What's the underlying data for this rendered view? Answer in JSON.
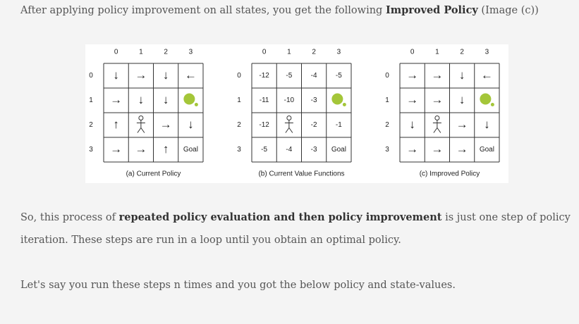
{
  "intro": {
    "text": "After applying policy improvement on all states, you get the following ",
    "bold": "Improved Policy",
    "tail": " (Image (c))"
  },
  "figure": {
    "panels": [
      {
        "caption": "(a) Current Policy",
        "col_labels": [
          0,
          1,
          2,
          3
        ],
        "row_labels": [
          0,
          1,
          2,
          3
        ],
        "cells": [
          [
            "↓",
            "→",
            "↓",
            "←"
          ],
          [
            "→",
            "↓",
            "↓",
            null
          ],
          [
            "↑",
            null,
            "→",
            "↓"
          ],
          [
            "→",
            "→",
            "↑",
            "Goal"
          ]
        ]
      },
      {
        "caption": "(b) Current Value Functions",
        "col_labels": [
          0,
          1,
          2,
          3
        ],
        "row_labels": [
          0,
          1,
          2,
          3
        ],
        "cells": [
          [
            -12,
            -5,
            -4,
            -5
          ],
          [
            -11,
            -10,
            -3,
            null
          ],
          [
            -12,
            null,
            -2,
            -1
          ],
          [
            -5,
            -4,
            -3,
            "Goal"
          ]
        ]
      },
      {
        "caption": "(c) Improved Policy",
        "col_labels": [
          0,
          1,
          2,
          3
        ],
        "row_labels": [
          0,
          1,
          2,
          3
        ],
        "cells": [
          [
            "→",
            "→",
            "↓",
            "←"
          ],
          [
            "→",
            "→",
            "↓",
            null
          ],
          [
            "↓",
            null,
            "→",
            "↓"
          ],
          [
            "→",
            "→",
            "→",
            "Goal"
          ]
        ]
      }
    ]
  },
  "paragraphs": [
    {
      "text": "So, this process of ",
      "bold": "repeated policy evaluation and then policy improvement",
      "tail": " is just one step of policy iteration. These steps are run in a loop until you obtain an optimal policy."
    },
    {
      "text": "Let's say you run these steps n times and you got the below policy and state-values."
    }
  ]
}
